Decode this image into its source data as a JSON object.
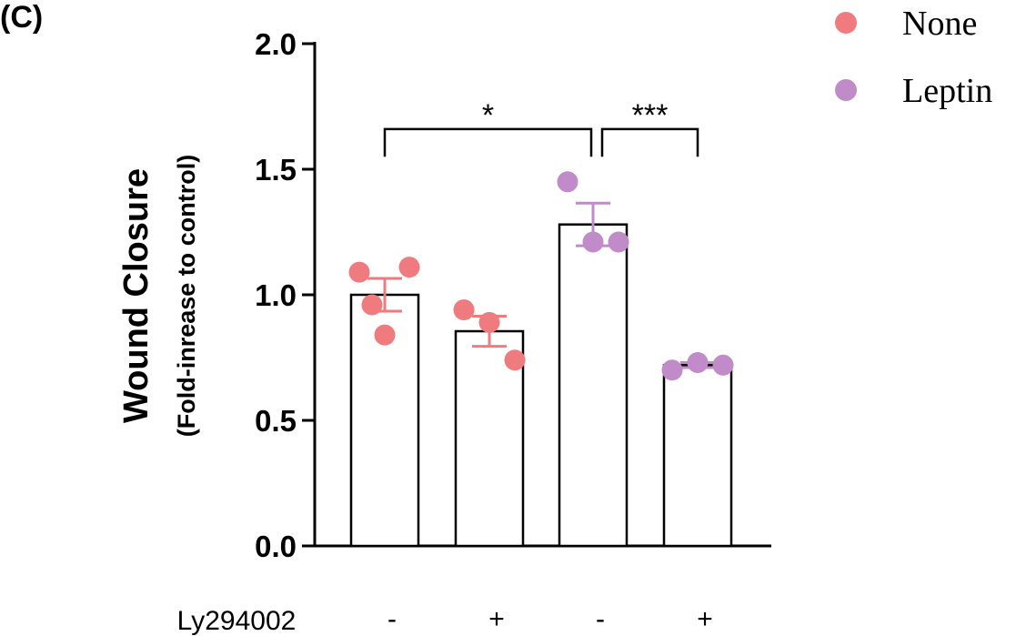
{
  "panel_label": "(C)",
  "chart_data": {
    "type": "bar",
    "title": "",
    "ylabel": "Wound Closure",
    "ylabel_sub": "(Fold-inrease to control)",
    "xlabel": "",
    "ylim": [
      0,
      2.0
    ],
    "yticks": [
      0.0,
      0.5,
      1.0,
      1.5,
      2.0
    ],
    "ytick_labels": [
      "0.0",
      "0.5",
      "1.0",
      "1.5",
      "2.0"
    ],
    "factor_label": "Ly294002",
    "factor_values": [
      "-",
      "+",
      "-",
      "+"
    ],
    "legend": [
      {
        "name": "None",
        "color": "#f07b7f"
      },
      {
        "name": "Leptin",
        "color": "#c08bc8"
      }
    ],
    "bars": [
      {
        "group": "None",
        "value": 1.0,
        "sem": 0.065,
        "points": [
          1.09,
          1.11,
          0.96,
          0.84
        ]
      },
      {
        "group": "None",
        "value": 0.855,
        "sem": 0.06,
        "points": [
          0.94,
          0.89,
          0.74
        ]
      },
      {
        "group": "Leptin",
        "value": 1.28,
        "sem": 0.085,
        "points": [
          1.45,
          1.21,
          1.21
        ]
      },
      {
        "group": "Leptin",
        "value": 0.72,
        "sem": 0.01,
        "points": [
          0.7,
          0.73,
          0.72
        ]
      }
    ],
    "significance": [
      {
        "from": 0,
        "to": 2,
        "label": "*"
      },
      {
        "from": 2,
        "to": 3,
        "label": "***"
      }
    ]
  }
}
